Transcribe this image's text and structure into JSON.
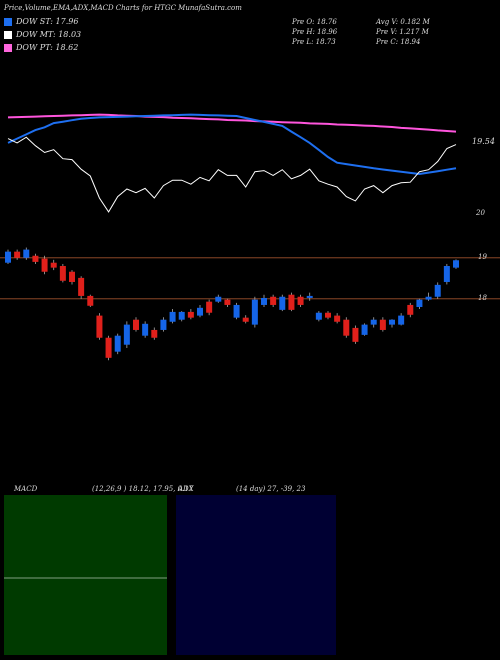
{
  "header": {
    "title": "Price,Volume,EMA,ADX,MACD Charts for HTGC MunafaSutra.com",
    "legend": [
      {
        "label": "DOW ST: 17.96",
        "color": "#1e6ff0"
      },
      {
        "label": "DOW MT: 18.03",
        "color": "#ffffff"
      },
      {
        "label": "DOW PT: 18.62",
        "color": "#ff66dd"
      }
    ],
    "info": [
      "Pre O: 18.76",
      "Avg V: 0.182 M",
      "Pre H: 18.96",
      "Pre V: 1.217 M",
      "Pre L: 18.73",
      "Pre C: 18.94"
    ]
  },
  "chart_data": [
    {
      "type": "line",
      "ylim": [
        16.45,
        21.93
      ],
      "annotations": [
        "19.54",
        "20"
      ],
      "series": [
        {
          "color": "#ff55dd",
          "values": [
            19.9,
            19.91,
            19.92,
            19.93,
            19.94,
            19.95,
            19.96,
            19.97,
            19.98,
            19.99,
            20.0,
            19.99,
            19.97,
            19.96,
            19.95,
            19.93,
            19.92,
            19.91,
            19.89,
            19.88,
            19.87,
            19.85,
            19.84,
            19.83,
            19.81,
            19.8,
            19.79,
            19.77,
            19.76,
            19.75,
            19.73,
            19.72,
            19.71,
            19.69,
            19.68,
            19.67,
            19.65,
            19.64,
            19.63,
            19.61,
            19.6,
            19.58,
            19.56,
            19.53,
            19.51,
            19.49,
            19.47,
            19.44,
            19.42,
            19.4
          ]
        },
        {
          "color": "#1e6ff0",
          "values": [
            19.0,
            19.15,
            19.3,
            19.45,
            19.55,
            19.7,
            19.75,
            19.8,
            19.85,
            19.88,
            19.9,
            19.91,
            19.92,
            19.93,
            19.94,
            19.95,
            19.96,
            19.97,
            19.98,
            19.99,
            20.0,
            19.99,
            19.98,
            19.97,
            19.96,
            19.95,
            19.88,
            19.81,
            19.74,
            19.67,
            19.6,
            19.4,
            19.2,
            19.0,
            18.75,
            18.5,
            18.3,
            18.25,
            18.2,
            18.15,
            18.1,
            18.06,
            18.02,
            17.98,
            17.94,
            17.9,
            17.95,
            18.0,
            18.05,
            18.1
          ]
        },
        {
          "color": "#ffffff",
          "values": [
            19.15,
            19.0,
            19.2,
            18.9,
            18.66,
            18.76,
            18.44,
            18.41,
            18.07,
            17.83,
            17.05,
            16.56,
            17.1,
            17.37,
            17.24,
            17.39,
            17.05,
            17.49,
            17.68,
            17.68,
            17.54,
            17.78,
            17.66,
            18.05,
            17.85,
            17.85,
            17.44,
            17.98,
            18.02,
            17.85,
            18.05,
            17.73,
            17.85,
            18.07,
            17.66,
            17.54,
            17.44,
            17.1,
            16.95,
            17.37,
            17.49,
            17.24,
            17.49,
            17.59,
            17.61,
            17.98,
            18.05,
            18.34,
            18.8,
            18.94
          ]
        }
      ]
    },
    {
      "type": "candlestick",
      "ylim": [
        13.58,
        19.8
      ],
      "yticks": [
        18,
        19
      ],
      "up_color": "#1565e8",
      "down_color": "#e0201b",
      "open": [
        18.88,
        19.15,
        19.0,
        19.05,
        18.98,
        18.88,
        18.8,
        18.66,
        18.51,
        18.07,
        17.59,
        17.05,
        16.71,
        16.88,
        17.49,
        17.1,
        17.24,
        17.24,
        17.44,
        17.49,
        17.68,
        17.59,
        17.93,
        17.93,
        17.98,
        17.54,
        17.54,
        17.37,
        17.85,
        18.05,
        17.73,
        18.1,
        18.05,
        18.02,
        17.49,
        17.66,
        17.59,
        17.49,
        17.29,
        17.12,
        17.37,
        17.49,
        17.37,
        17.37,
        17.85,
        17.8,
        17.98,
        18.05,
        18.41,
        18.76
      ],
      "high": [
        19.2,
        19.2,
        19.25,
        19.1,
        19.05,
        18.95,
        18.85,
        18.7,
        18.55,
        18.1,
        17.65,
        17.1,
        17.15,
        17.45,
        17.55,
        17.45,
        17.3,
        17.55,
        17.75,
        17.7,
        17.75,
        17.85,
        17.98,
        18.1,
        18.0,
        17.9,
        17.6,
        18.05,
        18.1,
        18.1,
        18.1,
        18.15,
        18.1,
        18.15,
        17.7,
        17.7,
        17.65,
        17.55,
        17.35,
        17.4,
        17.55,
        17.55,
        17.5,
        17.65,
        17.9,
        18.0,
        18.15,
        18.4,
        18.85,
        18.96
      ],
      "low": [
        18.85,
        18.95,
        18.95,
        18.85,
        18.6,
        18.7,
        18.4,
        18.35,
        18.0,
        17.8,
        17.0,
        16.5,
        16.65,
        16.8,
        17.2,
        17.05,
        17.0,
        17.2,
        17.4,
        17.45,
        17.5,
        17.55,
        17.6,
        17.9,
        17.8,
        17.5,
        17.4,
        17.3,
        17.8,
        17.8,
        17.7,
        17.7,
        17.8,
        17.95,
        17.45,
        17.5,
        17.4,
        17.05,
        16.9,
        17.1,
        17.3,
        17.2,
        17.3,
        17.35,
        17.55,
        17.75,
        17.95,
        18.0,
        18.35,
        18.73
      ],
      "close": [
        19.15,
        19.0,
        19.2,
        18.9,
        18.66,
        18.76,
        18.44,
        18.41,
        18.07,
        17.83,
        17.05,
        16.56,
        17.1,
        17.37,
        17.24,
        17.39,
        17.05,
        17.49,
        17.68,
        17.68,
        17.54,
        17.78,
        17.66,
        18.05,
        17.85,
        17.85,
        17.44,
        17.98,
        18.02,
        17.85,
        18.05,
        17.73,
        17.85,
        18.07,
        17.66,
        17.54,
        17.44,
        17.1,
        16.95,
        17.37,
        17.49,
        17.24,
        17.49,
        17.59,
        17.61,
        17.98,
        18.05,
        18.34,
        18.8,
        18.94
      ]
    },
    {
      "type": "macd",
      "label": "MACD",
      "params": "(12,26,9 ) 18.12, 17.95, 0.17"
    },
    {
      "type": "adx",
      "label": "ADX",
      "params": "(14 day) 27, -39, 23"
    }
  ]
}
